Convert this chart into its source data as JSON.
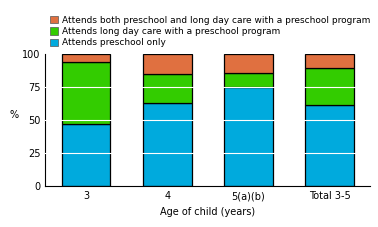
{
  "categories": [
    "3",
    "4",
    "5(a)(b)",
    "Total 3-5"
  ],
  "blue_values": [
    47,
    63,
    75,
    62
  ],
  "green_values": [
    47,
    22,
    11,
    28
  ],
  "orange_values": [
    6,
    15,
    14,
    10
  ],
  "blue_color": "#00aadd",
  "green_color": "#33cc00",
  "orange_color": "#e07040",
  "bar_edge_color": "#000000",
  "bar_linewidth": 0.9,
  "legend_labels": [
    "Attends both preschool and long day care with a preschool program",
    "Attends long day care with a preschool program",
    "Attends preschool only"
  ],
  "legend_colors": [
    "#e07040",
    "#33cc00",
    "#00aadd"
  ],
  "xlabel": "Age of child (years)",
  "ylabel": "%",
  "ylim": [
    0,
    100
  ],
  "yticks": [
    0,
    25,
    50,
    75,
    100
  ],
  "grid_color": "#ffffff",
  "background_color": "#ffffff",
  "bar_width": 0.6,
  "axis_fontsize": 7,
  "legend_fontsize": 6.5
}
